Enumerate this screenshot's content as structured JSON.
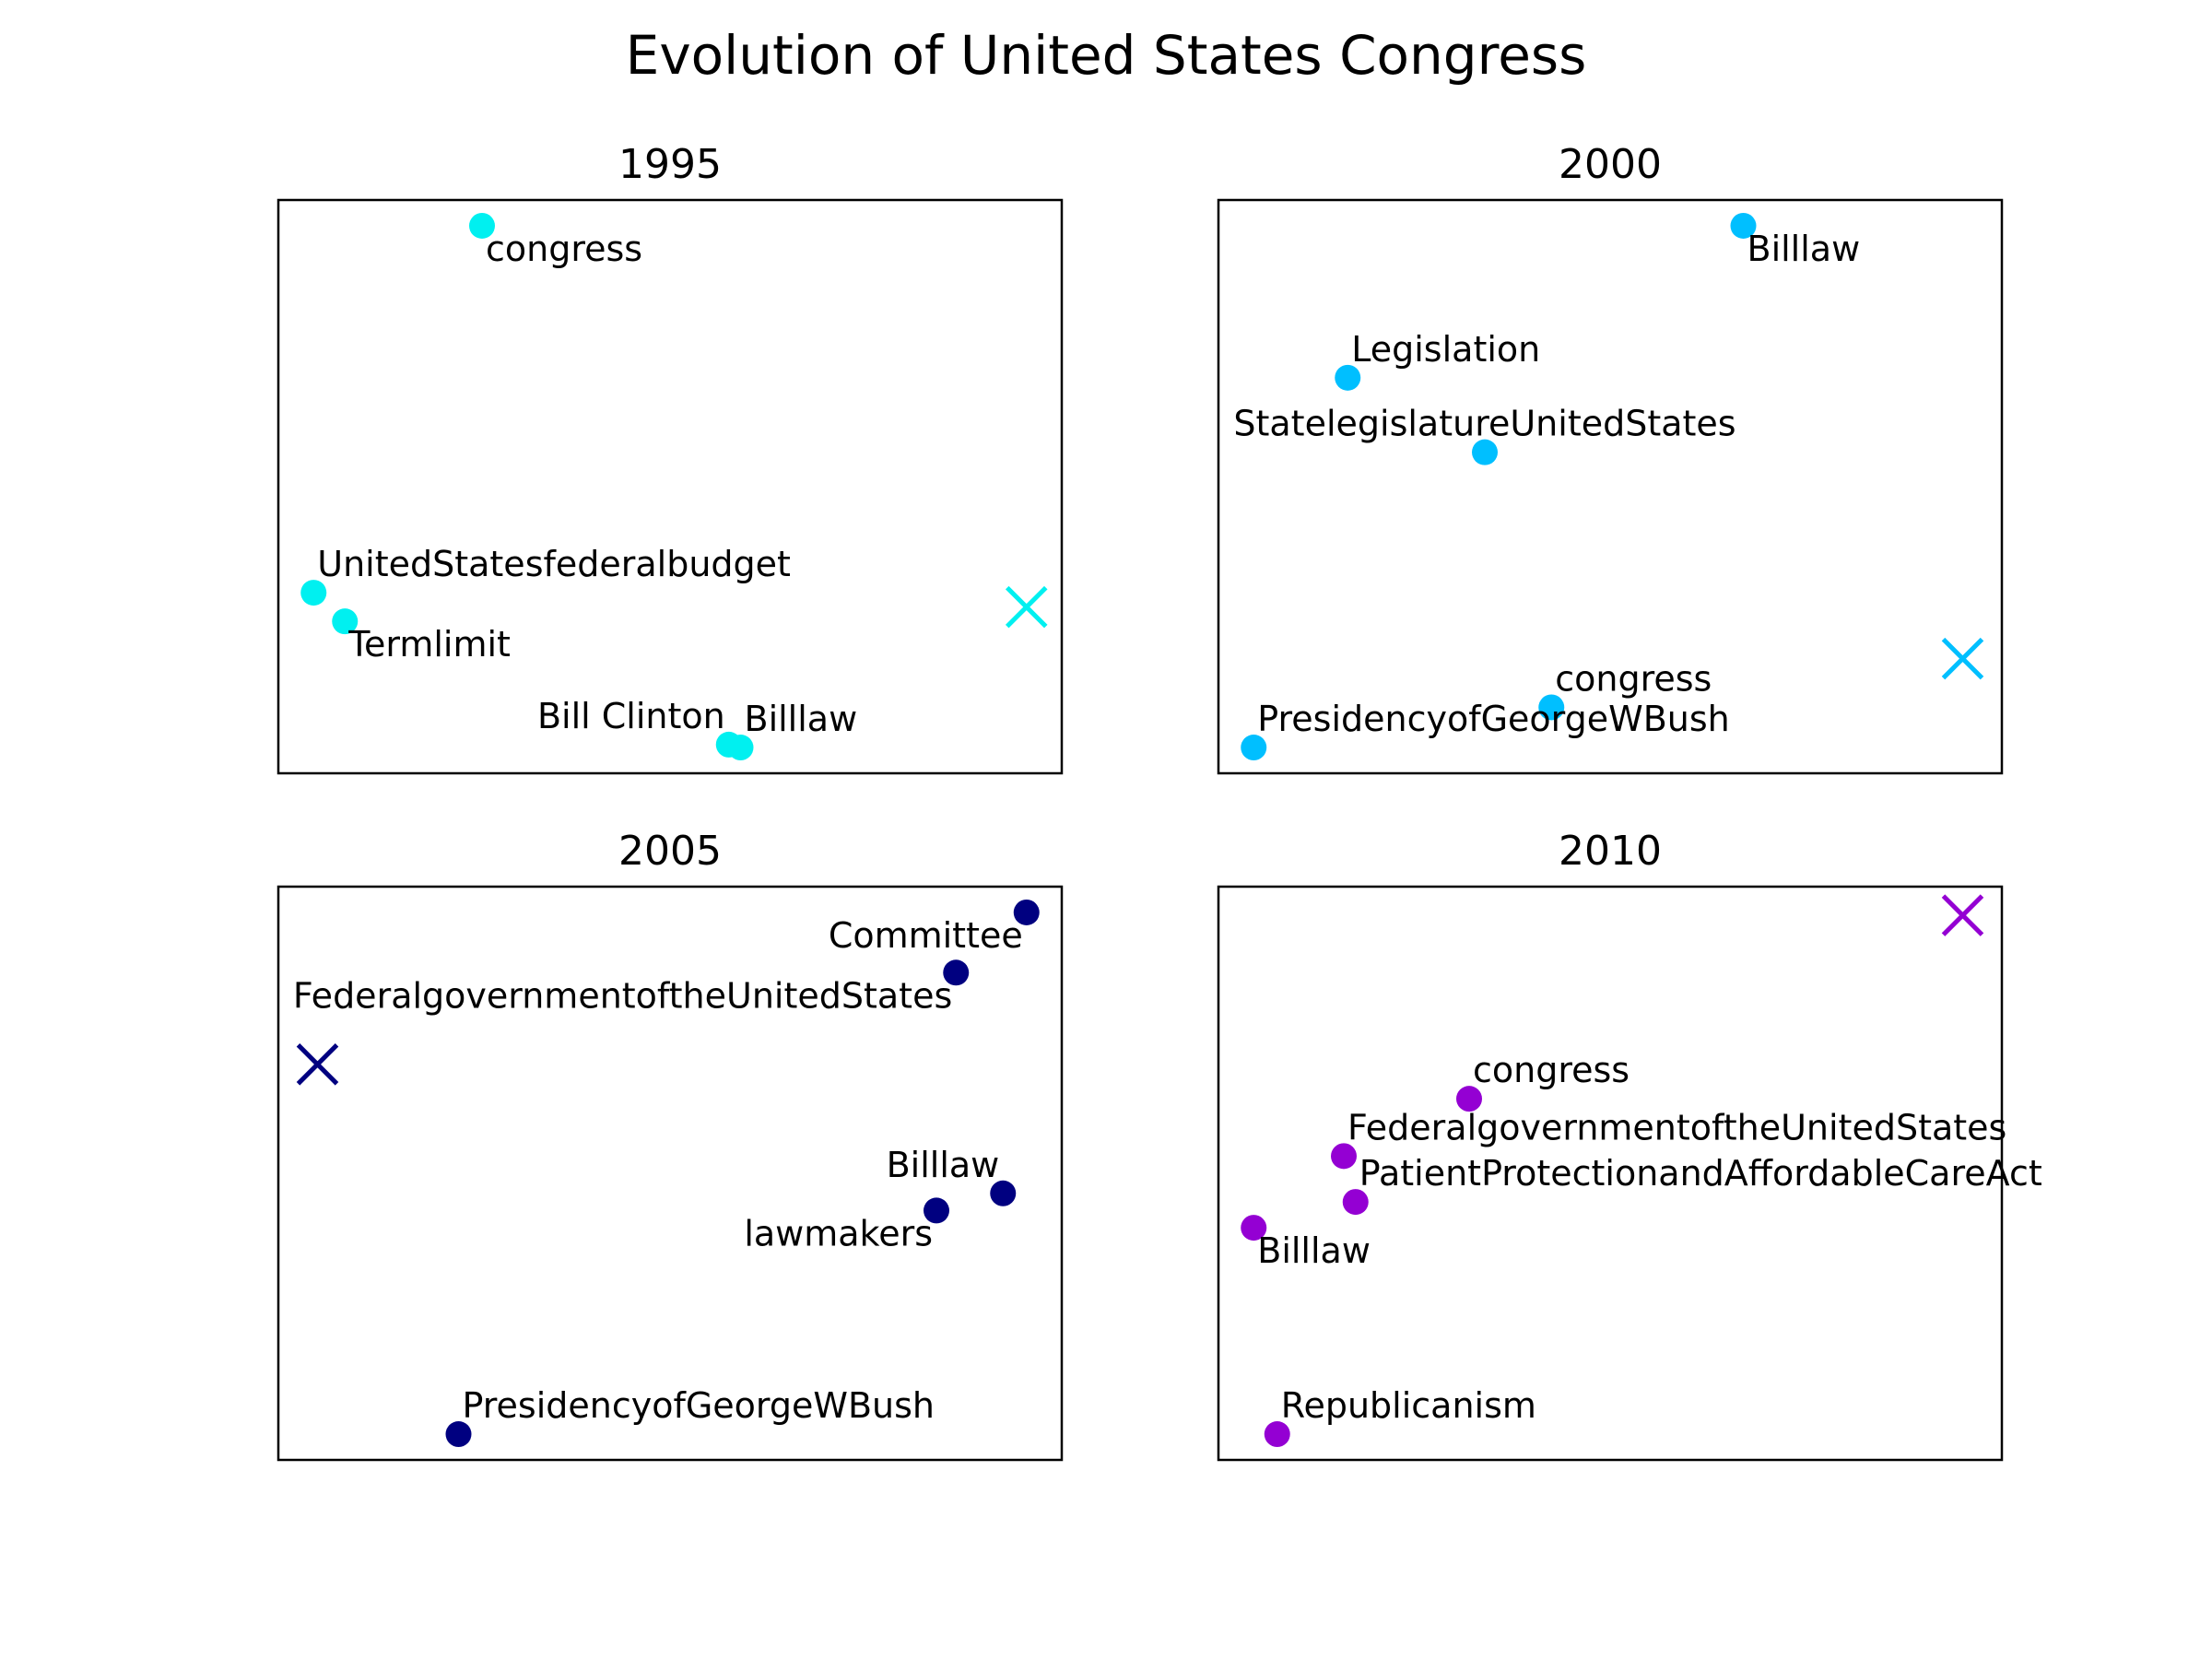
{
  "title": "Evolution of United States Congress",
  "chart_data": [
    {
      "type": "scatter",
      "title": "1995",
      "color": "#00f0f0",
      "xlim": [
        0,
        100
      ],
      "ylim": [
        0,
        100
      ],
      "centroid": {
        "x": 95.5,
        "y": 29
      },
      "points": [
        {
          "label": "congress",
          "x": 26,
          "y": 95.5,
          "label_pos": "below-right"
        },
        {
          "label": "UnitedStatesfederalbudget",
          "x": 4.5,
          "y": 31.5,
          "label_pos": "above-right"
        },
        {
          "label": "Termlimit",
          "x": 8.5,
          "y": 26.5,
          "label_pos": "below-right"
        },
        {
          "label": "Bill Clinton",
          "x": 57.5,
          "y": 5,
          "label_pos": "above-left"
        },
        {
          "label": "Billlaw",
          "x": 59,
          "y": 4.5,
          "label_pos": "above-right"
        }
      ]
    },
    {
      "type": "scatter",
      "title": "2000",
      "color": "#00bfff",
      "xlim": [
        0,
        100
      ],
      "ylim": [
        0,
        100
      ],
      "centroid": {
        "x": 95,
        "y": 20
      },
      "points": [
        {
          "label": "Billlaw",
          "x": 67,
          "y": 95.5,
          "label_pos": "below-right"
        },
        {
          "label": "Legislation",
          "x": 16.5,
          "y": 69,
          "label_pos": "above-right"
        },
        {
          "label": "StatelegislatureUnitedStates",
          "x": 34,
          "y": 56,
          "label_pos": "above-center"
        },
        {
          "label": "congress",
          "x": 42.5,
          "y": 11.5,
          "label_pos": "above-right"
        },
        {
          "label": "PresidencyofGeorgeWBush",
          "x": 4.5,
          "y": 4.5,
          "label_pos": "above-right"
        }
      ]
    },
    {
      "type": "scatter",
      "title": "2005",
      "color": "#000080",
      "xlim": [
        0,
        100
      ],
      "ylim": [
        0,
        100
      ],
      "centroid": {
        "x": 5,
        "y": 69
      },
      "points": [
        {
          "label": "Committee",
          "x": 95.5,
          "y": 95.5,
          "label_pos": "below-left"
        },
        {
          "label": "FederalgovernmentoftheUnitedStates",
          "x": 86.5,
          "y": 85,
          "label_pos": "below-left"
        },
        {
          "label": "Billlaw",
          "x": 92.5,
          "y": 46.5,
          "label_pos": "above-left"
        },
        {
          "label": "lawmakers",
          "x": 84,
          "y": 43.5,
          "label_pos": "below-left"
        },
        {
          "label": "PresidencyofGeorgeWBush",
          "x": 23,
          "y": 4.5,
          "label_pos": "above-right"
        }
      ]
    },
    {
      "type": "scatter",
      "title": "2010",
      "color": "#9400d3",
      "xlim": [
        0,
        100
      ],
      "ylim": [
        0,
        100
      ],
      "centroid": {
        "x": 95,
        "y": 95
      },
      "points": [
        {
          "label": "congress",
          "x": 32,
          "y": 63,
          "label_pos": "above-right"
        },
        {
          "label": "FederalgovernmentoftheUnitedStates",
          "x": 16,
          "y": 53,
          "label_pos": "above-right"
        },
        {
          "label": "PatientProtectionandAffordableCareAct",
          "x": 17.5,
          "y": 45,
          "label_pos": "above-right"
        },
        {
          "label": "Billlaw",
          "x": 4.5,
          "y": 40.5,
          "label_pos": "below-right"
        },
        {
          "label": "Republicanism",
          "x": 7.5,
          "y": 4.5,
          "label_pos": "above-right"
        }
      ]
    }
  ]
}
